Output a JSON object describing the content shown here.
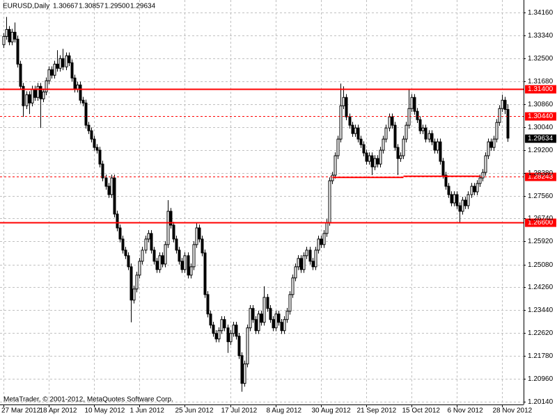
{
  "chart_data": {
    "type": "candlestick",
    "symbol": "EURUSD,Daily",
    "quote": [
      "1.30667",
      "1.30857",
      "1.29500",
      "1.29634"
    ],
    "footer": "MetaTrader, © 2001-2012, MetaQuotes Software Corp.",
    "categories": [
      "27 Mar 2012",
      null,
      null,
      null,
      null,
      null,
      null,
      null,
      null,
      null,
      null,
      null,
      null,
      null,
      null,
      null,
      "18 Apr 2012",
      null,
      null,
      null,
      null,
      null,
      null,
      null,
      null,
      null,
      null,
      null,
      null,
      null,
      null,
      null,
      "10 May 2012",
      null,
      null,
      null,
      null,
      null,
      null,
      null,
      null,
      null,
      null,
      null,
      null,
      null,
      null,
      null,
      "1 Jun 2012",
      null,
      null,
      null,
      null,
      null,
      null,
      null,
      null,
      null,
      null,
      null,
      null,
      null,
      null,
      null,
      "25 Jun 2012",
      null,
      null,
      null,
      null,
      null,
      null,
      null,
      null,
      null,
      null,
      null,
      null,
      null,
      null,
      null,
      "17 Jul 2012",
      null,
      null,
      null,
      null,
      null,
      null,
      null,
      null,
      null,
      null,
      null,
      null,
      null,
      null,
      null,
      "8 Aug 2012",
      null,
      null,
      null,
      null,
      null,
      null,
      null,
      null,
      null,
      null,
      null,
      null,
      null,
      null,
      null,
      "30 Aug 2012",
      null,
      null,
      null,
      null,
      null,
      null,
      null,
      null,
      null,
      null,
      null,
      null,
      null,
      null,
      null,
      "21 Sep 2012",
      null,
      null,
      null,
      null,
      null,
      null,
      null,
      null,
      null,
      null,
      null,
      null,
      null,
      null,
      null,
      "15 Oct 2012",
      null,
      null,
      null,
      null,
      null,
      null,
      null,
      null,
      null,
      null,
      null,
      null,
      null,
      null,
      null,
      "6 Nov 2012",
      null,
      null,
      null,
      null,
      null,
      null,
      null,
      null,
      null,
      null,
      null,
      null,
      null,
      null,
      null,
      "28 Nov 2012",
      null,
      null
    ],
    "open": [
      1.33,
      1.333,
      1.3355,
      1.331,
      1.3345,
      1.332,
      1.323,
      1.315,
      1.308,
      1.312,
      1.309,
      1.314,
      1.311,
      1.315,
      1.3105,
      1.313,
      1.317,
      1.321,
      1.319,
      1.323,
      1.3215,
      1.325,
      1.322,
      1.326,
      1.3235,
      1.318,
      1.314,
      1.3155,
      1.31,
      1.309,
      1.301,
      1.299,
      1.296,
      1.293,
      1.292,
      1.287,
      1.282,
      1.279,
      1.276,
      1.282,
      1.269,
      1.264,
      1.26,
      1.256,
      1.254,
      1.25,
      1.238,
      1.242,
      1.247,
      1.252,
      1.256,
      1.26,
      1.262,
      1.256,
      1.252,
      1.249,
      1.254,
      1.251,
      1.258,
      1.27,
      1.265,
      1.26,
      1.256,
      1.252,
      1.249,
      1.254,
      1.247,
      1.25,
      1.258,
      1.264,
      1.26,
      1.255,
      1.24,
      1.233,
      1.229,
      1.226,
      1.224,
      1.227,
      1.231,
      1.228,
      1.223,
      1.226,
      1.229,
      1.225,
      1.218,
      1.208,
      1.215,
      1.228,
      1.235,
      1.231,
      1.227,
      1.233,
      1.23,
      1.239,
      1.235,
      1.231,
      1.228,
      1.233,
      1.23,
      1.227,
      1.231,
      1.234,
      1.24,
      1.246,
      1.25,
      1.253,
      1.249,
      1.254,
      1.256,
      1.252,
      1.25,
      1.256,
      1.26,
      1.258,
      1.262,
      1.266,
      1.281,
      1.283,
      1.29,
      1.296,
      1.308,
      1.311,
      1.304,
      1.301,
      1.298,
      1.3,
      1.296,
      1.294,
      1.291,
      1.288,
      1.29,
      1.286,
      1.289,
      1.287,
      1.292,
      1.296,
      1.3,
      1.304,
      1.301,
      1.293,
      1.289,
      1.29,
      1.296,
      1.301,
      1.307,
      1.311,
      1.306,
      1.303,
      1.299,
      1.3,
      1.296,
      1.298,
      1.295,
      1.292,
      1.295,
      1.288,
      1.283,
      1.279,
      1.276,
      1.273,
      1.276,
      1.272,
      1.27,
      1.274,
      1.272,
      1.276,
      1.279,
      1.277,
      1.28,
      1.282,
      1.284,
      1.29,
      1.295,
      1.293,
      1.296,
      1.302,
      1.307,
      1.31,
      1.30667
    ],
    "high": [
      1.3342,
      1.34,
      1.3367,
      1.3357,
      1.338,
      1.3332,
      1.3242,
      1.3162,
      1.3132,
      1.3132,
      1.3152,
      1.3152,
      1.3162,
      1.3162,
      1.3142,
      1.3182,
      1.3222,
      1.3222,
      1.3242,
      1.328,
      1.3262,
      1.3285,
      1.3272,
      1.3272,
      1.3247,
      1.3192,
      1.3167,
      1.3167,
      1.3112,
      1.3102,
      1.3022,
      1.3002,
      1.2972,
      1.2942,
      1.2932,
      1.2882,
      1.2832,
      1.2802,
      1.2832,
      1.2832,
      1.2702,
      1.2652,
      1.2612,
      1.2572,
      1.2552,
      1.2512,
      1.2432,
      1.2482,
      1.2532,
      1.2572,
      1.2612,
      1.2632,
      1.2632,
      1.2572,
      1.2532,
      1.2552,
      1.2552,
      1.2592,
      1.274,
      1.2712,
      1.2662,
      1.2612,
      1.2572,
      1.2532,
      1.2552,
      1.2552,
      1.2512,
      1.2592,
      1.266,
      1.2652,
      1.2612,
      1.2562,
      1.2412,
      1.2342,
      1.2302,
      1.2272,
      1.2282,
      1.2322,
      1.2322,
      1.2292,
      1.2272,
      1.2302,
      1.2302,
      1.2262,
      1.2192,
      1.2162,
      1.2292,
      1.2362,
      1.2362,
      1.2322,
      1.2342,
      1.2342,
      1.243,
      1.2402,
      1.2362,
      1.2322,
      1.2342,
      1.2342,
      1.2312,
      1.2322,
      1.2352,
      1.2412,
      1.2472,
      1.2512,
      1.2542,
      1.2542,
      1.2552,
      1.2572,
      1.2572,
      1.2532,
      1.2572,
      1.2612,
      1.2612,
      1.2632,
      1.2672,
      1.2822,
      1.2842,
      1.2912,
      1.2972,
      1.316,
      1.315,
      1.3122,
      1.3052,
      1.3022,
      1.3012,
      1.3012,
      1.2972,
      1.2952,
      1.2922,
      1.2912,
      1.2912,
      1.2902,
      1.2902,
      1.2932,
      1.2972,
      1.3012,
      1.3052,
      1.3052,
      1.3022,
      1.2942,
      1.2912,
      1.2972,
      1.3022,
      1.314,
      1.3122,
      1.3122,
      1.3072,
      1.3042,
      1.3012,
      1.3012,
      1.2992,
      1.2992,
      1.2962,
      1.2962,
      1.2962,
      1.2892,
      1.2842,
      1.2802,
      1.2772,
      1.2772,
      1.2772,
      1.2732,
      1.2752,
      1.2752,
      1.2772,
      1.2802,
      1.2802,
      1.2812,
      1.2832,
      1.2852,
      1.2912,
      1.2962,
      1.2962,
      1.2972,
      1.3032,
      1.3082,
      1.312,
      1.3112,
      1.30857
    ],
    "low": [
      1.3288,
      1.3318,
      1.3298,
      1.3298,
      1.3308,
      1.3218,
      1.3138,
      1.304,
      1.3068,
      1.305,
      1.3078,
      1.3098,
      1.3098,
      1.3,
      1.3093,
      1.3118,
      1.3158,
      1.3178,
      1.3178,
      1.3203,
      1.3203,
      1.3208,
      1.3208,
      1.3223,
      1.3168,
      1.3128,
      1.3128,
      1.3088,
      1.3078,
      1.2998,
      1.2978,
      1.2948,
      1.2918,
      1.2908,
      1.2858,
      1.2808,
      1.2778,
      1.2748,
      1.2748,
      1.2678,
      1.2628,
      1.2588,
      1.2548,
      1.2528,
      1.2488,
      1.23,
      1.2368,
      1.2408,
      1.2458,
      1.2508,
      1.2548,
      1.2588,
      1.2548,
      1.2508,
      1.2478,
      1.2478,
      1.2498,
      1.2498,
      1.2568,
      1.2638,
      1.2588,
      1.2548,
      1.2508,
      1.2478,
      1.2478,
      1.2458,
      1.2458,
      1.2488,
      1.2568,
      1.2588,
      1.2538,
      1.2388,
      1.2318,
      1.2278,
      1.2248,
      1.2228,
      1.2228,
      1.2258,
      1.2268,
      1.219,
      1.2218,
      1.2248,
      1.2238,
      1.2168,
      1.205,
      1.2068,
      1.2138,
      1.2268,
      1.2298,
      1.2258,
      1.2258,
      1.2288,
      1.2288,
      1.2338,
      1.2298,
      1.2268,
      1.2268,
      1.2288,
      1.2258,
      1.2258,
      1.2298,
      1.2328,
      1.2388,
      1.2448,
      1.2488,
      1.2478,
      1.2478,
      1.2528,
      1.2508,
      1.2488,
      1.2488,
      1.2548,
      1.2568,
      1.2568,
      1.2608,
      1.2648,
      1.2798,
      1.2818,
      1.2888,
      1.2948,
      1.3068,
      1.3028,
      1.2998,
      1.2968,
      1.2968,
      1.2948,
      1.2928,
      1.2898,
      1.2868,
      1.2868,
      1.283,
      1.2848,
      1.2858,
      1.2858,
      1.2908,
      1.2948,
      1.2988,
      1.2998,
      1.2918,
      1.283,
      1.2878,
      1.2888,
      1.2948,
      1.2998,
      1.3058,
      1.3048,
      1.3018,
      1.2978,
      1.2978,
      1.2948,
      1.2948,
      1.2938,
      1.2908,
      1.2908,
      1.2868,
      1.2818,
      1.2778,
      1.2748,
      1.2718,
      1.2718,
      1.2708,
      1.266,
      1.2688,
      1.2708,
      1.2708,
      1.2748,
      1.2758,
      1.2758,
      1.2788,
      1.2808,
      1.2828,
      1.2888,
      1.2918,
      1.2918,
      1.2948,
      1.3008,
      1.3058,
      1.305,
      1.295
    ],
    "close": [
      1.333,
      1.3355,
      1.331,
      1.3345,
      1.332,
      1.323,
      1.315,
      1.308,
      1.312,
      1.309,
      1.314,
      1.311,
      1.315,
      1.3105,
      1.313,
      1.317,
      1.321,
      1.319,
      1.323,
      1.3215,
      1.325,
      1.322,
      1.326,
      1.3235,
      1.318,
      1.314,
      1.3155,
      1.31,
      1.309,
      1.301,
      1.299,
      1.296,
      1.293,
      1.292,
      1.287,
      1.282,
      1.279,
      1.276,
      1.282,
      1.269,
      1.264,
      1.26,
      1.256,
      1.254,
      1.25,
      1.238,
      1.242,
      1.247,
      1.252,
      1.256,
      1.26,
      1.262,
      1.256,
      1.252,
      1.249,
      1.254,
      1.251,
      1.258,
      1.27,
      1.265,
      1.26,
      1.256,
      1.252,
      1.249,
      1.254,
      1.247,
      1.25,
      1.258,
      1.264,
      1.26,
      1.255,
      1.24,
      1.233,
      1.229,
      1.226,
      1.224,
      1.227,
      1.231,
      1.228,
      1.223,
      1.226,
      1.229,
      1.225,
      1.218,
      1.208,
      1.215,
      1.228,
      1.235,
      1.231,
      1.227,
      1.233,
      1.23,
      1.239,
      1.235,
      1.231,
      1.228,
      1.233,
      1.23,
      1.227,
      1.231,
      1.234,
      1.24,
      1.246,
      1.25,
      1.253,
      1.249,
      1.254,
      1.256,
      1.252,
      1.25,
      1.256,
      1.26,
      1.258,
      1.262,
      1.266,
      1.281,
      1.283,
      1.29,
      1.296,
      1.308,
      1.311,
      1.304,
      1.301,
      1.298,
      1.3,
      1.296,
      1.294,
      1.291,
      1.288,
      1.29,
      1.286,
      1.289,
      1.287,
      1.292,
      1.296,
      1.3,
      1.304,
      1.301,
      1.293,
      1.289,
      1.29,
      1.296,
      1.301,
      1.307,
      1.311,
      1.306,
      1.303,
      1.299,
      1.3,
      1.296,
      1.298,
      1.295,
      1.292,
      1.295,
      1.288,
      1.283,
      1.279,
      1.276,
      1.273,
      1.276,
      1.272,
      1.27,
      1.274,
      1.272,
      1.276,
      1.279,
      1.277,
      1.28,
      1.282,
      1.284,
      1.29,
      1.295,
      1.293,
      1.296,
      1.302,
      1.307,
      1.31,
      1.30667,
      1.29634
    ],
    "up_color": "#ffffff",
    "down_color": "#000000",
    "ylim": [
      1.2004,
      1.3461
    ],
    "yticks": [
      {
        "value": 1.3416,
        "label": "1.34160"
      },
      {
        "value": 1.3334,
        "label": "1.33340"
      },
      {
        "value": 1.325,
        "label": "1.32500"
      },
      {
        "value": 1.3168,
        "label": "1.31680"
      },
      {
        "value": 1.3086,
        "label": "1.30860"
      },
      {
        "value": 1.3004,
        "label": "1.30040"
      },
      {
        "value": 1.292,
        "label": "1.29200"
      },
      {
        "value": 1.2838,
        "label": "1.28380"
      },
      {
        "value": 1.2756,
        "label": "1.27560"
      },
      {
        "value": 1.2674,
        "label": "1.26740"
      },
      {
        "value": 1.2592,
        "label": "1.25920"
      },
      {
        "value": 1.2508,
        "label": "1.25080"
      },
      {
        "value": 1.2426,
        "label": "1.24260"
      },
      {
        "value": 1.2344,
        "label": "1.23440"
      },
      {
        "value": 1.2262,
        "label": "1.22620"
      },
      {
        "value": 1.2178,
        "label": "1.21780"
      },
      {
        "value": 1.2096,
        "label": "1.20960"
      },
      {
        "value": 1.2014,
        "label": "1.20140"
      }
    ],
    "grid": true,
    "levels": [
      {
        "value": 1.314,
        "label": "1.31400",
        "style": "solid",
        "color": "#ff0000"
      },
      {
        "value": 1.3044,
        "label": "1.30440",
        "style": "dashed",
        "color": "#ff0000"
      },
      {
        "value": 1.28243,
        "label": "1.28243",
        "style": "dashed",
        "color": "#ff0000"
      },
      {
        "value": 1.266,
        "label": "1.26600",
        "style": "solid",
        "color": "#ff0000"
      }
    ],
    "segments": [
      {
        "value": 1.2822,
        "start": 116,
        "end": 141,
        "color": "#ff0000"
      },
      {
        "value": 1.2826,
        "start": 141,
        "end": 168,
        "color": "#ff0000"
      }
    ],
    "last_price": {
      "value": 1.29634,
      "label": "1.29634"
    }
  }
}
